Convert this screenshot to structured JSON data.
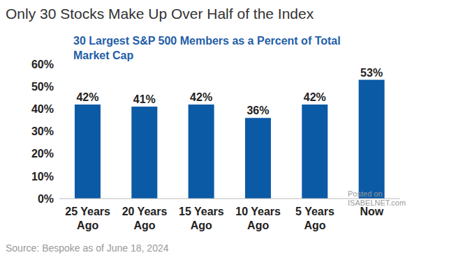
{
  "chart_data": {
    "type": "bar",
    "title": "Only 30 Stocks Make Up Over Half of the Index",
    "subtitle": "30 Largest S&P 500 Members as a Percent of Total Market Cap",
    "categories": [
      "25 Years Ago",
      "20 Years Ago",
      "15 Years Ago",
      "10 Years Ago",
      "5 Years Ago",
      "Now"
    ],
    "values": [
      42,
      41,
      42,
      36,
      42,
      53
    ],
    "value_labels": [
      "42%",
      "41%",
      "42%",
      "36%",
      "42%",
      "53%"
    ],
    "data_labels": true,
    "color": "#0b5aa6",
    "ylim": [
      0,
      60
    ],
    "yticks": [
      {
        "value": 0,
        "label": "0%"
      },
      {
        "value": 10,
        "label": "10%"
      },
      {
        "value": 20,
        "label": "20%"
      },
      {
        "value": 30,
        "label": "30%"
      },
      {
        "value": 40,
        "label": "40%"
      },
      {
        "value": 50,
        "label": "50%"
      },
      {
        "value": 60,
        "label": "60%"
      }
    ],
    "grid": false,
    "source": "Source: Bespoke as of June 18, 2024",
    "watermark": [
      "Posted on",
      "ISABELNET.com"
    ]
  }
}
